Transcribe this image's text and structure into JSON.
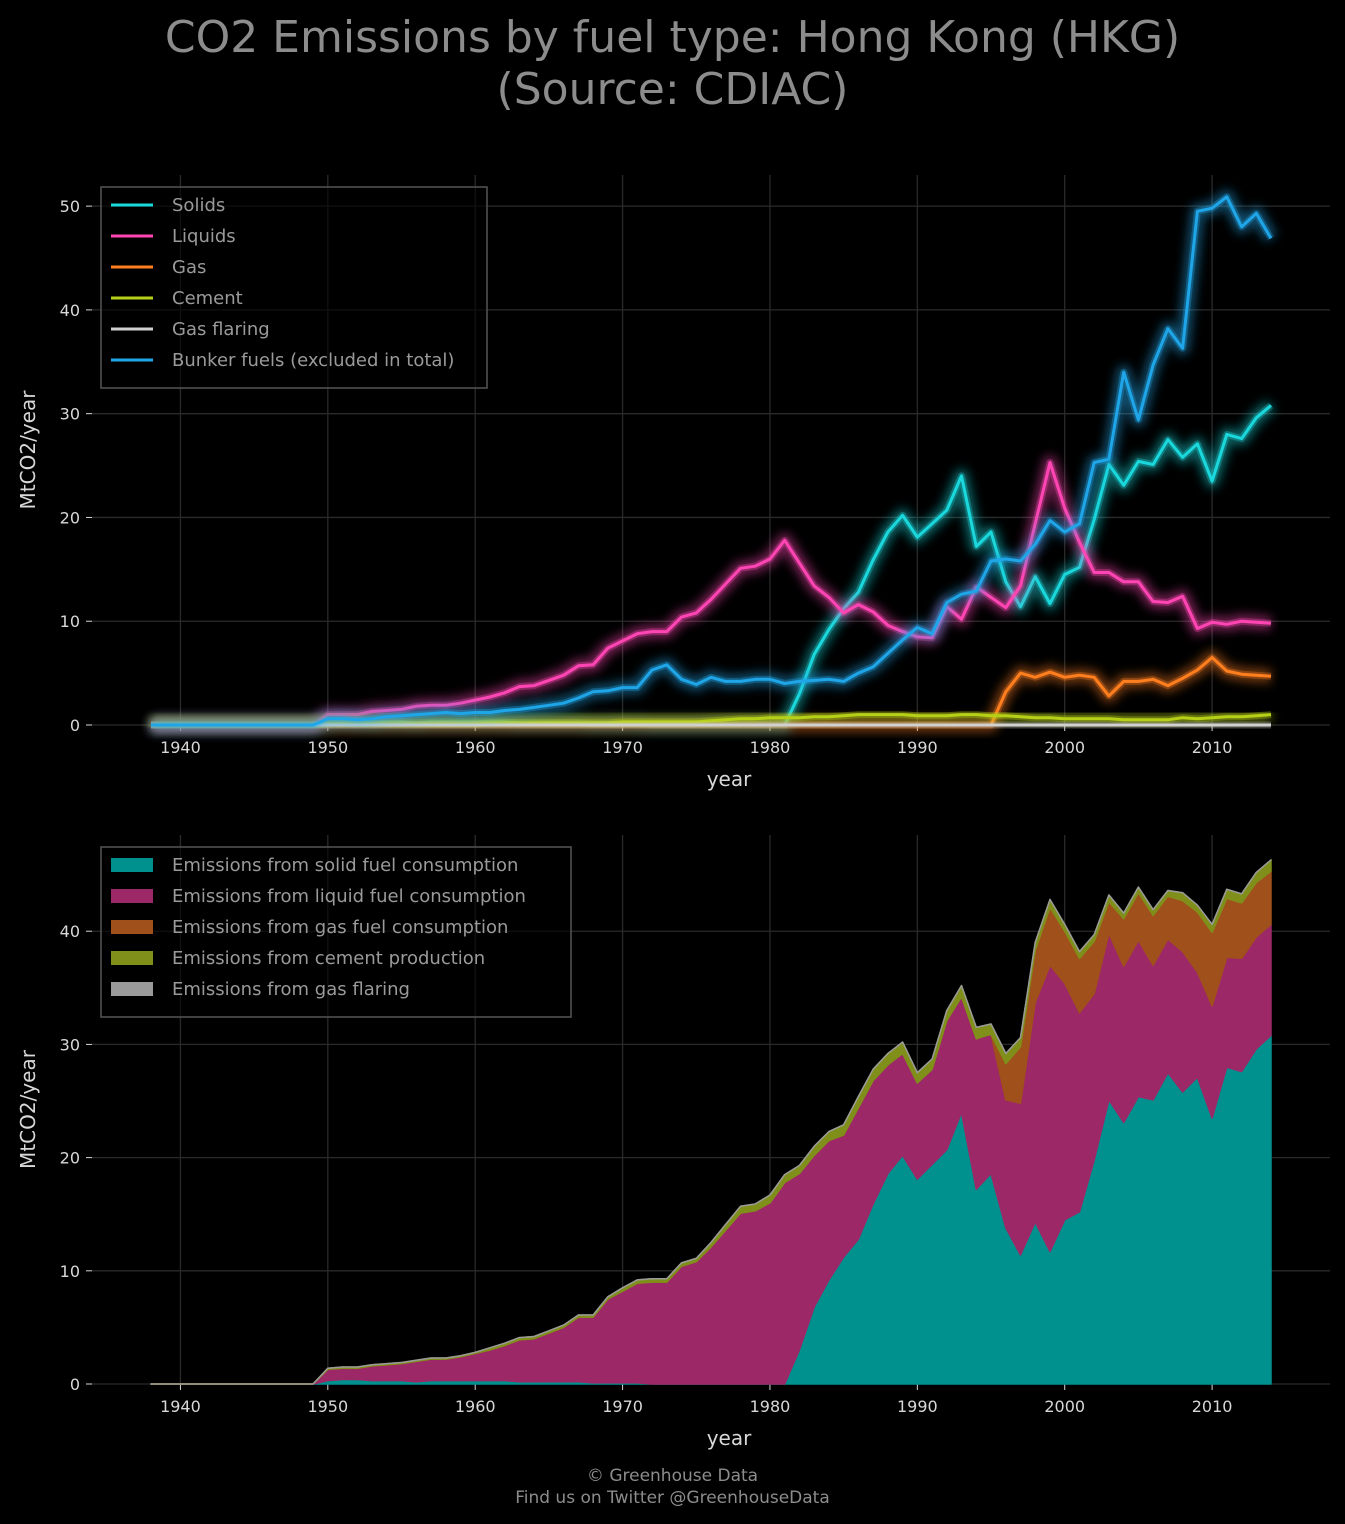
{
  "title_line1": "CO2 Emissions by fuel type: Hong Kong (HKG)",
  "title_line2": "(Source: CDIAC)",
  "footer_line1": "© Greenhouse Data",
  "footer_line2": "Find us on Twitter @GreenhouseData",
  "chart_data": [
    {
      "type": "line",
      "xlabel": "year",
      "ylabel": "MtCO2/year",
      "xlim": [
        1934,
        2018
      ],
      "ylim": [
        0,
        53
      ],
      "xticks": [
        1940,
        1950,
        1960,
        1970,
        1980,
        1990,
        2000,
        2010
      ],
      "yticks": [
        0,
        10,
        20,
        30,
        40,
        50
      ],
      "grid": true,
      "legend_position": "top-left",
      "x": [
        1938,
        1939,
        1940,
        1941,
        1942,
        1943,
        1944,
        1945,
        1946,
        1947,
        1948,
        1949,
        1950,
        1951,
        1952,
        1953,
        1954,
        1955,
        1956,
        1957,
        1958,
        1959,
        1960,
        1961,
        1962,
        1963,
        1964,
        1965,
        1966,
        1967,
        1968,
        1969,
        1970,
        1971,
        1972,
        1973,
        1974,
        1975,
        1976,
        1977,
        1978,
        1979,
        1980,
        1981,
        1982,
        1983,
        1984,
        1985,
        1986,
        1987,
        1988,
        1989,
        1990,
        1991,
        1992,
        1993,
        1994,
        1995,
        1996,
        1997,
        1998,
        1999,
        2000,
        2001,
        2002,
        2003,
        2004,
        2005,
        2006,
        2007,
        2008,
        2009,
        2010,
        2011,
        2012,
        2013,
        2014
      ],
      "series": [
        {
          "name": "Solids",
          "color": "#1ad8dc",
          "values": [
            0,
            0,
            0,
            0,
            0,
            0,
            0,
            0,
            0,
            0,
            0,
            0,
            0.3,
            0.4,
            0.4,
            0.3,
            0.3,
            0.3,
            0.2,
            0.3,
            0.3,
            0.3,
            0.3,
            0.3,
            0.3,
            0.2,
            0.2,
            0.2,
            0.2,
            0.2,
            0.1,
            0.1,
            0.1,
            0.1,
            0,
            0,
            0,
            0,
            0,
            0,
            0,
            0,
            0,
            0,
            3.0,
            6.8,
            9.2,
            11.2,
            12.8,
            15.9,
            18.6,
            20.2,
            18.1,
            19.4,
            20.7,
            24.0,
            17.2,
            18.6,
            13.8,
            11.4,
            14.3,
            11.7,
            14.5,
            15.2,
            19.8,
            25.1,
            23.1,
            25.4,
            25.1,
            27.5,
            25.8,
            27.1,
            23.5,
            28.0,
            27.6,
            29.6,
            30.8
          ]
        },
        {
          "name": "Liquids",
          "color": "#ff45b4",
          "values": [
            0,
            0,
            0,
            0,
            0,
            0,
            0,
            0,
            0,
            0,
            0,
            0,
            1.0,
            1.0,
            1.0,
            1.3,
            1.4,
            1.5,
            1.8,
            1.9,
            1.9,
            2.1,
            2.4,
            2.7,
            3.1,
            3.7,
            3.8,
            4.3,
            4.8,
            5.7,
            5.8,
            7.4,
            8.1,
            8.8,
            9.0,
            9.0,
            10.4,
            10.8,
            12.1,
            13.6,
            15.1,
            15.3,
            16.0,
            17.8,
            15.6,
            13.4,
            12.3,
            10.8,
            11.6,
            10.9,
            9.6,
            9.0,
            8.5,
            8.4,
            11.4,
            10.2,
            13.3,
            12.3,
            11.3,
            13.4,
            19.4,
            25.3,
            20.9,
            17.6,
            14.7,
            14.7,
            13.8,
            13.8,
            11.9,
            11.8,
            12.4,
            9.3,
            9.9,
            9.7,
            10.0,
            9.9,
            9.8
          ]
        },
        {
          "name": "Gas",
          "color": "#ff7f1e",
          "values": [
            0,
            0,
            0,
            0,
            0,
            0,
            0,
            0,
            0,
            0,
            0,
            0,
            0,
            0,
            0,
            0,
            0,
            0,
            0,
            0,
            0,
            0,
            0,
            0,
            0,
            0,
            0,
            0,
            0,
            0,
            0,
            0,
            0,
            0,
            0,
            0,
            0,
            0,
            0,
            0,
            0,
            0,
            0,
            0,
            0,
            0,
            0,
            0,
            0,
            0,
            0,
            0,
            0,
            0,
            0,
            0,
            0,
            0,
            3.2,
            5.0,
            4.6,
            5.1,
            4.6,
            4.8,
            4.6,
            2.8,
            4.2,
            4.2,
            4.4,
            3.8,
            4.5,
            5.3,
            6.5,
            5.2,
            4.9,
            4.8,
            4.7
          ]
        },
        {
          "name": "Cement",
          "color": "#b6d018",
          "values": [
            0,
            0,
            0,
            0,
            0,
            0,
            0,
            0,
            0,
            0,
            0,
            0,
            0.1,
            0.1,
            0.1,
            0.1,
            0.1,
            0.1,
            0.1,
            0.1,
            0.1,
            0.1,
            0.1,
            0.2,
            0.2,
            0.2,
            0.2,
            0.2,
            0.2,
            0.2,
            0.2,
            0.2,
            0.3,
            0.3,
            0.3,
            0.3,
            0.3,
            0.3,
            0.4,
            0.5,
            0.6,
            0.6,
            0.7,
            0.7,
            0.7,
            0.8,
            0.8,
            0.9,
            1.0,
            1.0,
            1.0,
            1.0,
            0.9,
            0.9,
            0.9,
            1.0,
            1.0,
            0.9,
            0.9,
            0.8,
            0.7,
            0.7,
            0.6,
            0.6,
            0.6,
            0.6,
            0.5,
            0.5,
            0.5,
            0.5,
            0.7,
            0.6,
            0.7,
            0.8,
            0.8,
            0.9,
            1.0
          ]
        },
        {
          "name": "Gas flaring",
          "color": "#d0d0d0",
          "values": [
            0,
            0,
            0,
            0,
            0,
            0,
            0,
            0,
            0,
            0,
            0,
            0,
            0,
            0,
            0,
            0,
            0,
            0,
            0,
            0,
            0,
            0,
            0,
            0,
            0,
            0,
            0,
            0,
            0,
            0,
            0,
            0,
            0,
            0,
            0,
            0,
            0,
            0,
            0,
            0,
            0,
            0,
            0,
            0,
            0,
            0,
            0,
            0,
            0,
            0,
            0,
            0,
            0,
            0,
            0,
            0,
            0,
            0,
            0,
            0,
            0,
            0,
            0,
            0,
            0,
            0,
            0,
            0,
            0,
            0,
            0,
            0,
            0,
            0,
            0,
            0,
            0
          ]
        },
        {
          "name": "Bunker fuels (excluded in total)",
          "color": "#1ea6e8",
          "values": [
            0,
            0,
            0,
            0,
            0,
            0,
            0,
            0,
            0,
            0,
            0,
            0,
            0.6,
            0.6,
            0.5,
            0.6,
            0.8,
            0.9,
            1.0,
            1.1,
            1.2,
            1.1,
            1.2,
            1.2,
            1.4,
            1.5,
            1.7,
            1.9,
            2.1,
            2.6,
            3.2,
            3.3,
            3.6,
            3.6,
            5.3,
            5.8,
            4.4,
            3.9,
            4.6,
            4.2,
            4.2,
            4.4,
            4.4,
            4.0,
            4.2,
            4.3,
            4.4,
            4.2,
            5.0,
            5.6,
            6.9,
            8.2,
            9.4,
            8.8,
            11.8,
            12.6,
            12.9,
            15.8,
            16.0,
            15.8,
            17.4,
            19.7,
            18.6,
            19.4,
            25.3,
            25.6,
            34.0,
            29.4,
            34.7,
            38.2,
            36.3,
            49.5,
            49.8,
            50.9,
            48.0,
            49.3,
            46.9
          ]
        }
      ]
    },
    {
      "type": "area",
      "stacked": true,
      "xlabel": "year",
      "ylabel": "MtCO2/year",
      "xlim": [
        1934,
        2018
      ],
      "ylim": [
        0,
        48.5
      ],
      "xticks": [
        1940,
        1950,
        1960,
        1970,
        1980,
        1990,
        2000,
        2010
      ],
      "yticks": [
        0,
        10,
        20,
        30,
        40
      ],
      "grid": true,
      "legend_position": "top-left",
      "series": [
        {
          "name": "Emissions from solid fuel consumption",
          "color": "#00908e",
          "ref": "Solids"
        },
        {
          "name": "Emissions from liquid fuel consumption",
          "color": "#9c2867",
          "ref": "Liquids"
        },
        {
          "name": "Emissions from gas fuel consumption",
          "color": "#a0501b",
          "ref": "Gas"
        },
        {
          "name": "Emissions from cement production",
          "color": "#7f8f1a",
          "ref": "Cement"
        },
        {
          "name": "Emissions from gas flaring",
          "color": "#9a9a9a",
          "ref": "Gas flaring"
        }
      ]
    }
  ]
}
